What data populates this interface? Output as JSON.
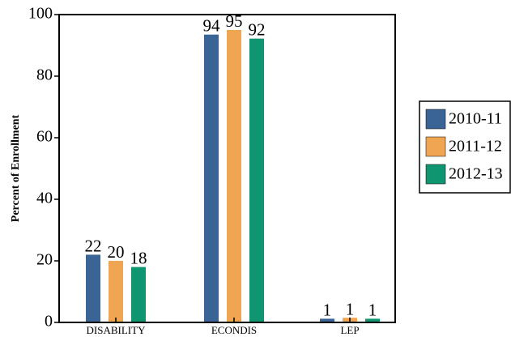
{
  "chart_data": {
    "type": "bar",
    "title": "",
    "xlabel": "",
    "ylabel": "Percent of Enrollment",
    "categories": [
      "DISABILITY",
      "ECONDIS",
      "LEP"
    ],
    "series": [
      {
        "name": "2010-11",
        "color": "#3A6496",
        "values": [
          22,
          94,
          1
        ]
      },
      {
        "name": "2011-12",
        "color": "#F0A552",
        "values": [
          20,
          95,
          1
        ]
      },
      {
        "name": "2012-13",
        "color": "#0F9670",
        "values": [
          18,
          92,
          1
        ]
      }
    ],
    "bar_heights": [
      [
        22,
        93.5,
        1.2
      ],
      [
        20,
        95,
        1.5
      ],
      [
        18,
        92.2,
        1.2
      ]
    ],
    "ylim": [
      0,
      100
    ],
    "yticks": [
      0,
      20,
      40,
      60,
      80,
      100
    ],
    "grid": false,
    "legend_position": "right"
  }
}
